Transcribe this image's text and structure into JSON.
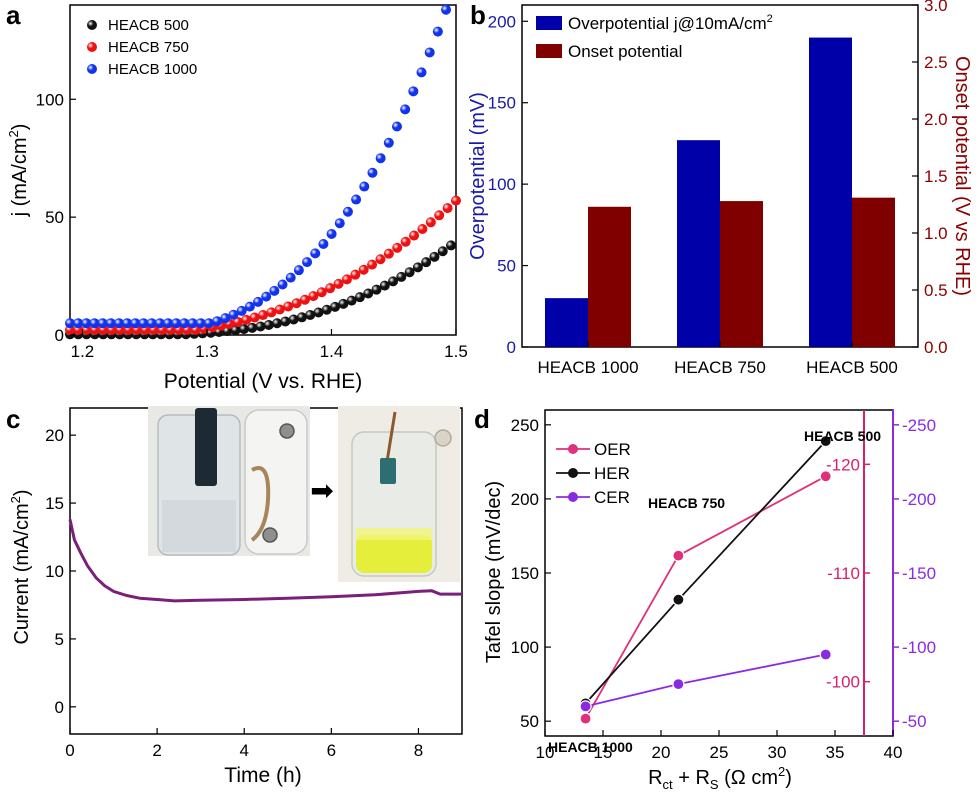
{
  "chart_data": [
    {
      "panel": "a",
      "type": "scatter",
      "xlabel": "Potential (V vs. RHE)",
      "ylabel": "j (mA/cm",
      "ylabel_sup": "2",
      "ylabel_end": ")",
      "xlim": [
        1.19,
        1.5
      ],
      "ylim": [
        0,
        140
      ],
      "x_ticks": [
        1.2,
        1.3,
        1.4,
        1.5
      ],
      "x_tick_labels": [
        "1.2",
        "1.3",
        "1.4",
        "1.5"
      ],
      "y_ticks": [
        0,
        50,
        100
      ],
      "y_tick_labels": [
        "0",
        "50",
        "100"
      ],
      "legend_position": "top-left",
      "series": [
        {
          "name": "HEACB 500",
          "color": "#111111",
          "onset": 1.245,
          "x_end": 1.496,
          "y_end": 38,
          "exponent": 2.5
        },
        {
          "name": "HEACB 750",
          "color": "#ee1111",
          "onset": 1.225,
          "x_end": 1.5,
          "y_end": 57,
          "exponent": 2.3
        },
        {
          "name": "HEACB 1000",
          "color": "#1133ee",
          "onset": 1.215,
          "x_end": 1.492,
          "y_end": 138,
          "exponent": 2.9
        }
      ]
    },
    {
      "panel": "b",
      "type": "bar",
      "categories": [
        "HEACB 1000",
        "HEACB 750",
        "HEACB 500"
      ],
      "ylabel_left": "Overpotential (mV)",
      "ylabel_right": "Onset potential (V vs RHE)",
      "ylim_left": [
        0,
        210
      ],
      "ylim_right": [
        0,
        3.0
      ],
      "y_ticks_left": [
        0,
        50,
        100,
        150,
        200
      ],
      "y_tick_labels_left": [
        "0",
        "50",
        "100",
        "150",
        "200"
      ],
      "y_ticks_right": [
        0,
        0.5,
        1.0,
        1.5,
        2.0,
        2.5,
        3.0
      ],
      "y_tick_labels_right": [
        "0.0",
        "0.5",
        "1.0",
        "1.5",
        "2.0",
        "2.5",
        "3.0"
      ],
      "left_axis_color": "#1a1aa8",
      "right_axis_color": "#8b0000",
      "legend_position": "top-left",
      "series": [
        {
          "name": "Overpotential j@10mA/cm",
          "name_sup": "2",
          "color": "#0000a8",
          "axis": "left",
          "values": [
            30,
            127,
            190
          ]
        },
        {
          "name": "Onset potential",
          "color": "#800000",
          "axis": "right",
          "values": [
            1.23,
            1.28,
            1.31
          ]
        }
      ]
    },
    {
      "panel": "c",
      "type": "line",
      "xlabel": "Time (h)",
      "ylabel": "Current (mA/cm",
      "ylabel_sup": "2",
      "ylabel_end": ")",
      "xlim": [
        0,
        9
      ],
      "ylim": [
        -2,
        22
      ],
      "x_ticks": [
        0,
        2,
        4,
        6,
        8
      ],
      "x_tick_labels": [
        "0",
        "2",
        "4",
        "6",
        "8"
      ],
      "y_ticks": [
        0,
        5,
        10,
        15,
        20
      ],
      "y_tick_labels": [
        "0",
        "5",
        "10",
        "15",
        "20"
      ],
      "series": [
        {
          "color": "#7a1f7a",
          "x": [
            0,
            0.1,
            0.25,
            0.4,
            0.6,
            0.8,
            1.0,
            1.3,
            1.6,
            2.0,
            2.4,
            3.0,
            4.0,
            5.0,
            6.0,
            7.0,
            7.6,
            8.0,
            8.3,
            8.5,
            9.0
          ],
          "y": [
            13.8,
            12.3,
            11.3,
            10.4,
            9.5,
            8.9,
            8.5,
            8.2,
            8.0,
            7.9,
            7.8,
            7.85,
            7.9,
            8.0,
            8.1,
            8.25,
            8.4,
            8.5,
            8.55,
            8.3,
            8.3
          ]
        }
      ],
      "inset": {
        "description": "",
        "arrow": "➡"
      }
    },
    {
      "panel": "d",
      "type": "line",
      "xlabel_base": "R",
      "xlabel_sub1": "ct",
      "xlabel_mid": " + R",
      "xlabel_sub2": "S",
      "xlabel_end": " (Ω cm",
      "xlabel_sup": "2",
      "xlabel_close": ")",
      "ylabel": "Tafel slope (mV/dec)",
      "xlim": [
        10,
        40
      ],
      "ylim_left": [
        40,
        260
      ],
      "ylim_right_inner": [
        -95,
        -125
      ],
      "ylim_right_outer": [
        40,
        260
      ],
      "x_ticks": [
        10,
        15,
        20,
        25,
        30,
        35,
        40
      ],
      "x_tick_labels": [
        "10",
        "15",
        "20",
        "25",
        "30",
        "35",
        "40"
      ],
      "y_ticks_left": [
        50,
        100,
        150,
        200,
        250
      ],
      "y_tick_labels_left": [
        "50",
        "100",
        "150",
        "200",
        "250"
      ],
      "y_ticks_inner": [
        -100,
        -110,
        -120
      ],
      "y_tick_labels_inner": [
        "-100",
        "-110",
        "-120"
      ],
      "y_ticks_outer": [
        50,
        100,
        150,
        200,
        250
      ],
      "y_tick_labels_outer": [
        "-50",
        "-100",
        "-150",
        "-200",
        "-250"
      ],
      "inner_axis_color": "#d6226e",
      "outer_axis_color": "#8a2be2",
      "legend_position": "top-left",
      "series": [
        {
          "name": "OER",
          "color": "#e0307a",
          "axis": "inner",
          "x": [
            13.5,
            21.5,
            34.2
          ],
          "y": [
            -96.6,
            -111.6,
            -118.9
          ]
        },
        {
          "name": "HER",
          "color": "#111111",
          "axis": "left",
          "x": [
            13.5,
            21.5,
            34.2
          ],
          "y": [
            62,
            132,
            239
          ]
        },
        {
          "name": "CER",
          "color": "#8a2be2",
          "axis": "outer",
          "x": [
            13.5,
            21.5,
            34.2
          ],
          "y": [
            60,
            75,
            95
          ]
        }
      ],
      "annotations": [
        "HEACB 1000",
        "HEACB 750",
        "HEACB 500"
      ]
    }
  ],
  "panel_labels": [
    "a",
    "b",
    "c",
    "d"
  ]
}
